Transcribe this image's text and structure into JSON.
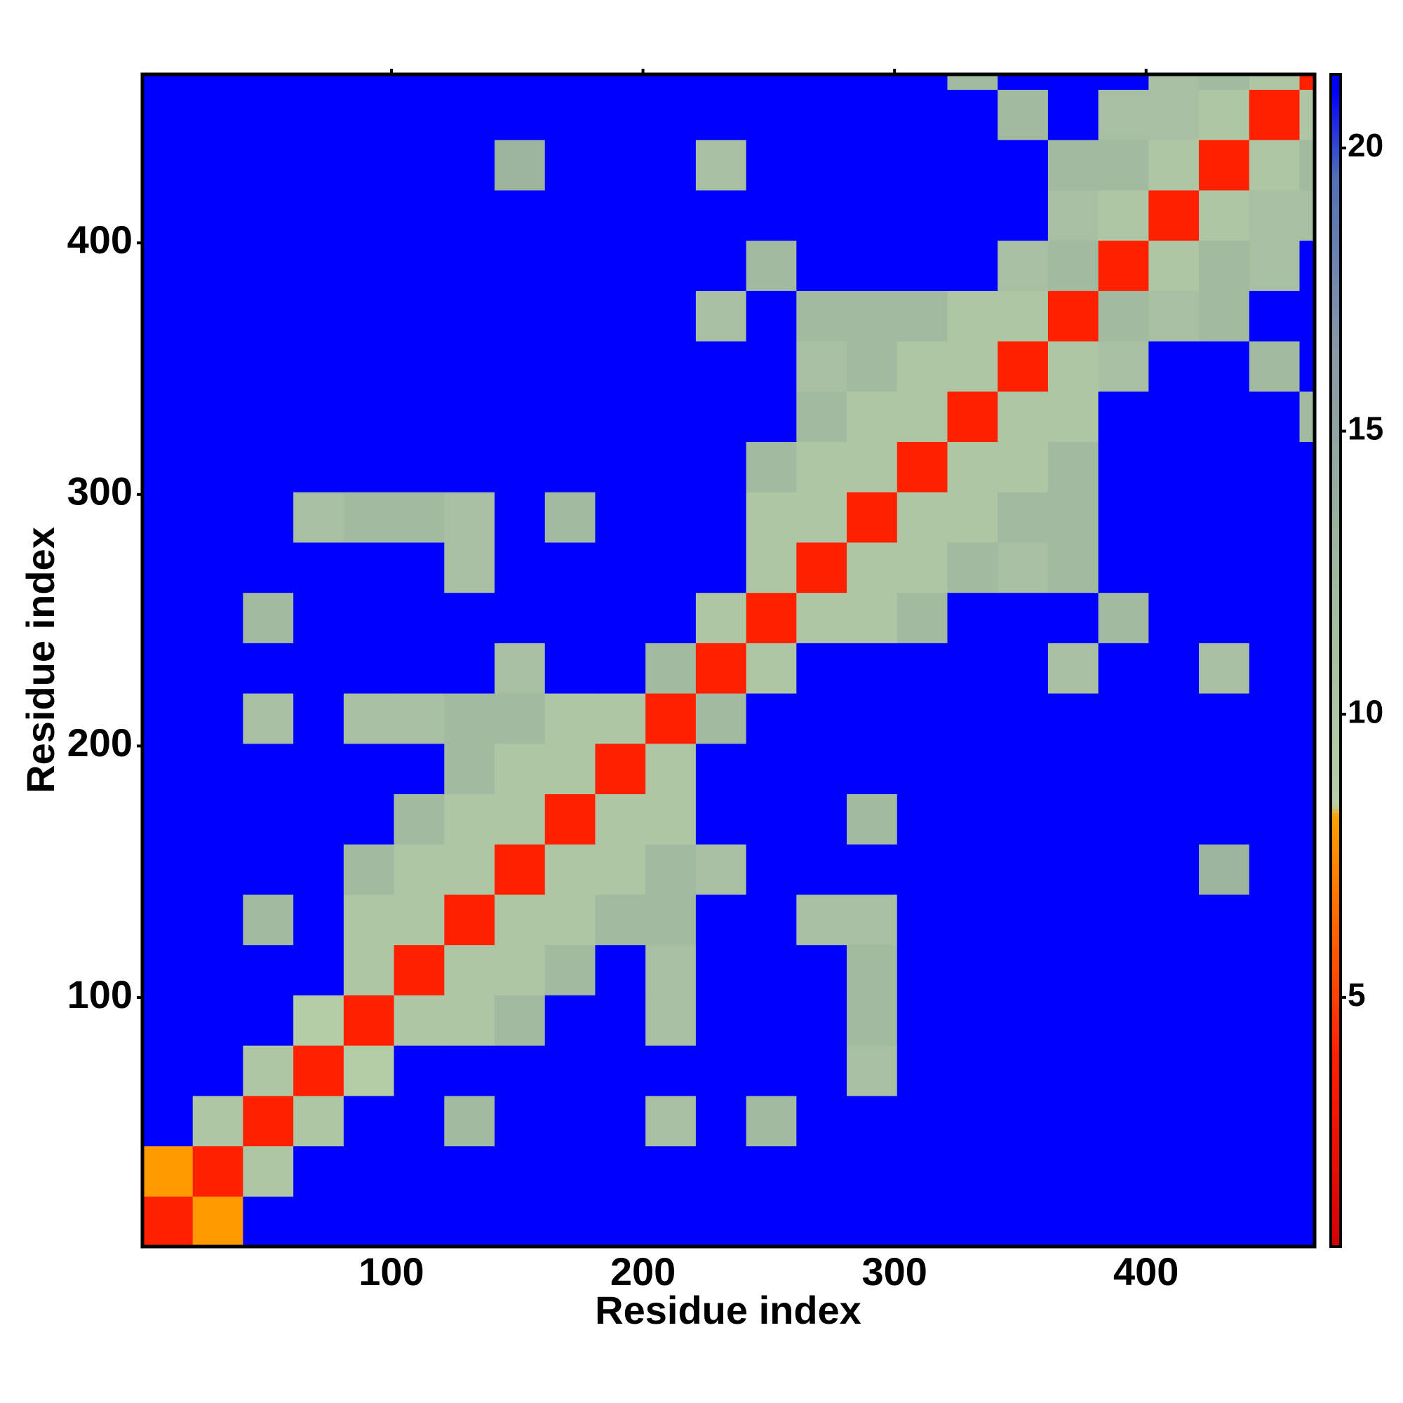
{
  "chart_data": {
    "type": "heatmap",
    "xlabel": "Residue index",
    "ylabel": "Residue index",
    "xlim": [
      1,
      467
    ],
    "ylim": [
      1,
      467
    ],
    "xticks": [
      100,
      200,
      300,
      400
    ],
    "yticks": [
      100,
      200,
      300,
      400
    ],
    "x_bins": [
      1,
      21,
      41,
      61,
      81,
      101,
      121,
      141,
      161,
      181,
      201,
      221,
      241,
      261,
      281,
      301,
      321,
      341,
      361,
      381,
      401,
      421,
      441,
      461,
      467
    ],
    "y_bins": [
      1,
      21,
      41,
      61,
      81,
      101,
      121,
      141,
      161,
      181,
      201,
      221,
      241,
      261,
      281,
      301,
      321,
      341,
      361,
      381,
      401,
      421,
      441,
      461,
      467
    ],
    "clim": [
      0.6,
      21.3
    ],
    "cticks": [
      5,
      10,
      15,
      20
    ],
    "colorscale": [
      [
        0.6,
        "#d40000"
      ],
      [
        4,
        "#ff2000"
      ],
      [
        8.2,
        "#ffa000"
      ],
      [
        8.4,
        "#b8d0a8"
      ],
      [
        13,
        "#9cb49c"
      ],
      [
        16.5,
        "#8898a8"
      ],
      [
        19.5,
        "#5070b8"
      ],
      [
        21,
        "#0000ff"
      ]
    ],
    "z": [
      [
        4,
        8,
        21,
        21,
        21,
        21,
        21,
        21,
        21,
        21,
        21,
        21,
        21,
        21,
        21,
        21,
        21,
        21,
        21,
        21,
        21,
        21,
        21,
        21
      ],
      [
        8,
        4,
        10,
        21,
        21,
        21,
        21,
        21,
        21,
        21,
        21,
        21,
        21,
        21,
        21,
        21,
        21,
        21,
        21,
        21,
        21,
        21,
        21,
        21
      ],
      [
        21,
        10,
        4,
        10,
        21,
        21,
        12,
        21,
        21,
        21,
        11,
        21,
        12,
        21,
        21,
        21,
        21,
        21,
        21,
        21,
        21,
        21,
        21,
        21
      ],
      [
        21,
        21,
        10,
        4,
        9,
        21,
        21,
        21,
        21,
        21,
        21,
        21,
        21,
        21,
        11,
        21,
        21,
        21,
        21,
        21,
        21,
        21,
        21,
        21
      ],
      [
        21,
        21,
        21,
        9,
        4,
        10,
        10,
        12,
        21,
        21,
        11,
        21,
        21,
        21,
        12,
        21,
        21,
        21,
        21,
        21,
        21,
        21,
        21,
        21
      ],
      [
        21,
        21,
        21,
        21,
        10,
        4,
        10,
        10,
        12,
        21,
        11,
        21,
        21,
        21,
        12,
        21,
        21,
        21,
        21,
        21,
        21,
        21,
        21,
        21
      ],
      [
        21,
        21,
        12,
        21,
        10,
        10,
        4,
        10,
        10,
        12,
        12,
        21,
        21,
        11,
        11,
        21,
        21,
        21,
        21,
        21,
        21,
        21,
        21,
        21
      ],
      [
        21,
        21,
        21,
        21,
        12,
        10,
        10,
        4,
        10,
        10,
        12,
        11,
        21,
        21,
        21,
        21,
        21,
        21,
        21,
        21,
        21,
        13,
        21,
        21
      ],
      [
        21,
        21,
        21,
        21,
        21,
        12,
        10,
        10,
        4,
        10,
        10,
        21,
        21,
        21,
        12,
        21,
        21,
        21,
        21,
        21,
        21,
        21,
        21,
        21
      ],
      [
        21,
        21,
        21,
        21,
        21,
        21,
        12,
        10,
        10,
        4,
        10,
        21,
        21,
        21,
        21,
        21,
        21,
        21,
        21,
        21,
        21,
        21,
        21,
        21
      ],
      [
        21,
        21,
        11,
        21,
        11,
        11,
        12,
        12,
        10,
        10,
        4,
        12,
        21,
        21,
        21,
        21,
        21,
        21,
        21,
        21,
        21,
        21,
        21,
        21
      ],
      [
        21,
        21,
        21,
        21,
        21,
        21,
        21,
        11,
        21,
        21,
        12,
        4,
        10,
        21,
        21,
        21,
        21,
        21,
        11,
        21,
        21,
        11,
        21,
        21
      ],
      [
        21,
        21,
        12,
        21,
        21,
        21,
        21,
        21,
        21,
        21,
        21,
        10,
        4,
        10,
        10,
        12,
        21,
        21,
        21,
        12,
        21,
        21,
        21,
        21
      ],
      [
        21,
        21,
        21,
        21,
        21,
        21,
        11,
        21,
        21,
        21,
        21,
        21,
        10,
        4,
        10,
        10,
        12,
        11,
        12,
        21,
        21,
        21,
        21,
        21
      ],
      [
        21,
        21,
        21,
        11,
        12,
        12,
        11,
        21,
        12,
        21,
        21,
        21,
        10,
        10,
        4,
        10,
        10,
        12,
        12,
        21,
        21,
        21,
        21,
        21
      ],
      [
        21,
        21,
        21,
        21,
        21,
        21,
        21,
        21,
        21,
        21,
        21,
        21,
        12,
        10,
        10,
        4,
        10,
        10,
        12,
        21,
        21,
        21,
        21,
        21
      ],
      [
        21,
        21,
        21,
        21,
        21,
        21,
        21,
        21,
        21,
        21,
        21,
        21,
        21,
        12,
        10,
        10,
        4,
        10,
        10,
        21,
        21,
        21,
        21,
        12
      ],
      [
        21,
        21,
        21,
        21,
        21,
        21,
        21,
        21,
        21,
        21,
        21,
        21,
        21,
        11,
        12,
        10,
        10,
        4,
        10,
        11,
        21,
        21,
        12,
        21
      ],
      [
        21,
        21,
        21,
        21,
        21,
        21,
        21,
        21,
        21,
        21,
        21,
        11,
        21,
        12,
        12,
        12,
        10,
        10,
        4,
        12,
        11,
        12,
        21,
        21
      ],
      [
        21,
        21,
        21,
        21,
        21,
        21,
        21,
        21,
        21,
        21,
        21,
        21,
        12,
        21,
        21,
        21,
        21,
        11,
        12,
        4,
        10,
        12,
        11,
        21
      ],
      [
        21,
        21,
        21,
        21,
        21,
        21,
        21,
        21,
        21,
        21,
        21,
        21,
        21,
        21,
        21,
        21,
        21,
        21,
        11,
        10,
        4,
        10,
        11,
        11
      ],
      [
        21,
        21,
        21,
        21,
        21,
        21,
        21,
        13,
        21,
        21,
        21,
        11,
        21,
        21,
        21,
        21,
        21,
        21,
        12,
        12,
        10,
        4,
        10,
        12
      ],
      [
        21,
        21,
        21,
        21,
        21,
        21,
        21,
        21,
        21,
        21,
        21,
        21,
        21,
        21,
        21,
        21,
        21,
        12,
        21,
        11,
        11,
        10,
        4,
        10
      ],
      [
        21,
        21,
        21,
        21,
        21,
        21,
        21,
        21,
        21,
        21,
        21,
        21,
        21,
        21,
        21,
        21,
        12,
        21,
        21,
        21,
        11,
        12,
        10,
        4
      ]
    ]
  }
}
